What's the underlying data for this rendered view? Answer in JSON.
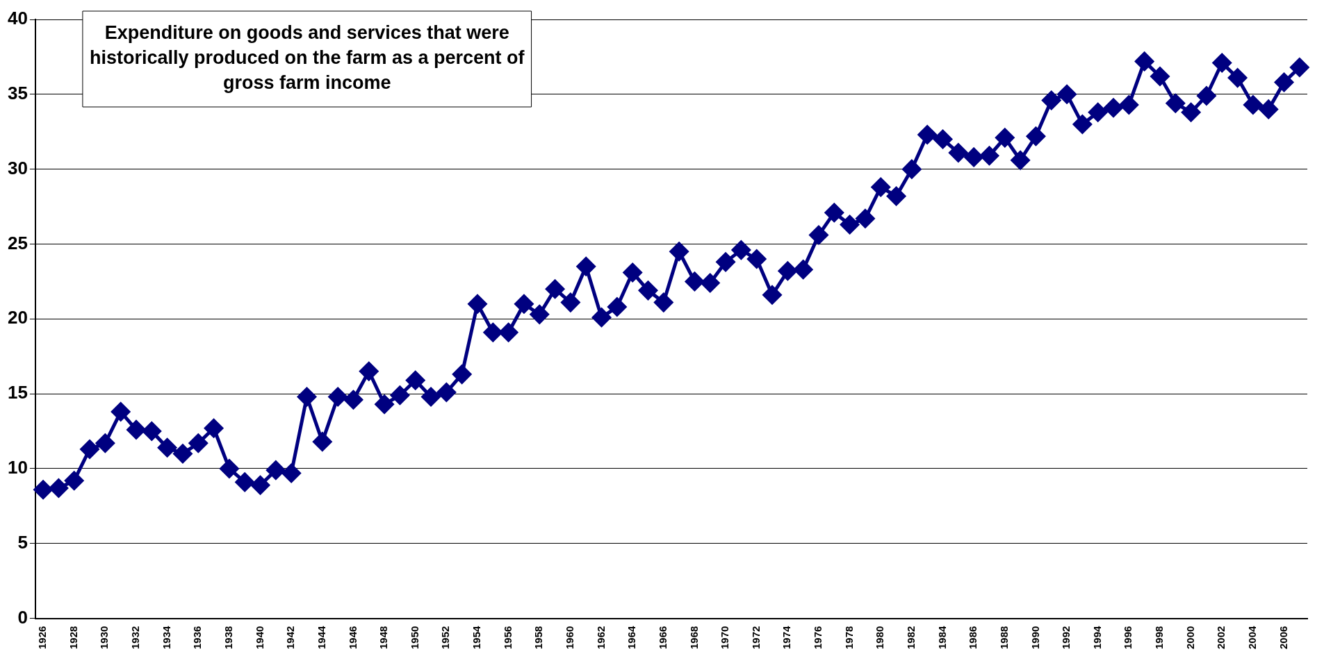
{
  "chart_data": {
    "type": "line",
    "title": "Expenditure on goods and services that were historically produced on the farm as a percent of gross farm income",
    "categories": [
      "1926",
      null,
      "1928",
      null,
      "1930",
      null,
      "1932",
      null,
      "1934",
      null,
      "1936",
      null,
      "1938",
      null,
      "1940",
      null,
      "1942",
      null,
      "1944",
      null,
      "1946",
      null,
      "1948",
      null,
      "1950",
      null,
      "1952",
      null,
      "1954",
      null,
      "1956",
      null,
      "1958",
      null,
      "1960",
      null,
      "1962",
      null,
      "1964",
      null,
      "1966",
      null,
      "1968",
      null,
      "1970",
      null,
      "1972",
      null,
      "1974",
      null,
      "1976",
      null,
      "1978",
      null,
      "1980",
      null,
      "1982",
      null,
      "1984",
      null,
      "1986",
      null,
      "1988",
      null,
      "1990",
      null,
      "1992",
      null,
      "1994",
      null,
      "1996",
      null,
      "1998",
      null,
      "2000",
      null,
      "2002",
      null,
      "2004",
      null,
      "2006",
      null
    ],
    "series": [
      {
        "color": "#000080",
        "values": [
          8.6,
          8.7,
          9.2,
          11.3,
          11.7,
          13.8,
          12.6,
          12.5,
          11.4,
          11.0,
          11.7,
          12.7,
          10.0,
          9.1,
          8.9,
          9.9,
          9.7,
          14.8,
          11.8,
          14.8,
          14.6,
          16.5,
          14.3,
          14.9,
          15.9,
          14.8,
          15.1,
          16.3,
          21.0,
          19.1,
          19.1,
          21.0,
          20.3,
          22.0,
          21.1,
          23.5,
          20.1,
          20.8,
          23.1,
          21.9,
          21.1,
          24.5,
          22.5,
          22.4,
          23.8,
          24.6,
          24.0,
          21.6,
          23.2,
          23.3,
          25.6,
          27.1,
          26.3,
          26.7,
          28.8,
          28.2,
          30.0,
          32.3,
          32.0,
          31.1,
          30.8,
          30.9,
          32.1,
          30.6,
          32.2,
          34.6,
          35.0,
          33.0,
          33.8,
          34.1,
          34.3,
          37.2,
          36.2,
          34.4,
          33.8,
          34.9,
          37.1,
          36.1,
          34.3,
          34.0,
          35.8,
          36.8
        ]
      }
    ],
    "ylim": [
      0,
      40
    ],
    "yticks": [
      0,
      5,
      10,
      15,
      20,
      25,
      30,
      35,
      40
    ],
    "grid": "y",
    "marker": "diamond",
    "line_style": "solid",
    "legend": false
  }
}
